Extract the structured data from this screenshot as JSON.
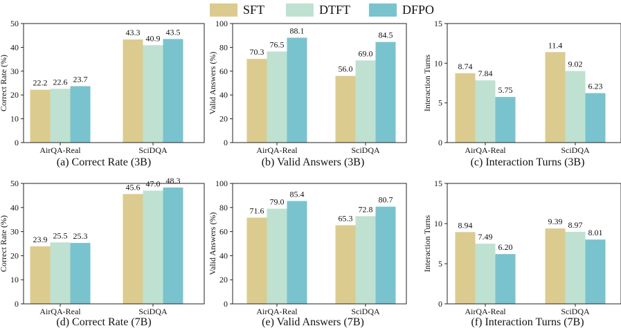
{
  "legend": [
    {
      "name": "SFT",
      "color": "#dccb8f"
    },
    {
      "name": "DTFT",
      "color": "#bfe1d2"
    },
    {
      "name": "DFPO",
      "color": "#79c3ce"
    }
  ],
  "chart_data": [
    {
      "type": "bar",
      "title": "(a) Correct Rate (3B)",
      "ylabel": "Correct Rate (%)",
      "categories": [
        "AirQA-Real",
        "SciDQA"
      ],
      "ylim": [
        0,
        50
      ],
      "yticks": [
        0,
        10,
        20,
        30,
        40,
        50
      ],
      "series": [
        {
          "name": "SFT",
          "values": [
            22.2,
            43.3
          ]
        },
        {
          "name": "DTFT",
          "values": [
            22.6,
            40.9
          ]
        },
        {
          "name": "DFPO",
          "values": [
            23.7,
            43.5
          ]
        }
      ],
      "labels": [
        [
          "22.2",
          "43.3"
        ],
        [
          "22.6",
          "40.9"
        ],
        [
          "23.7",
          "43.5"
        ]
      ]
    },
    {
      "type": "bar",
      "title": "(b) Valid Answers (3B)",
      "ylabel": "Valid Answers (%)",
      "categories": [
        "AirQA-Real",
        "SciDQA"
      ],
      "ylim": [
        0,
        100
      ],
      "yticks": [
        0,
        20,
        40,
        60,
        80,
        100
      ],
      "series": [
        {
          "name": "SFT",
          "values": [
            70.3,
            56.0
          ]
        },
        {
          "name": "DTFT",
          "values": [
            76.5,
            69.0
          ]
        },
        {
          "name": "DFPO",
          "values": [
            88.1,
            84.5
          ]
        }
      ],
      "labels": [
        [
          "70.3",
          "56.0"
        ],
        [
          "76.5",
          "69.0"
        ],
        [
          "88.1",
          "84.5"
        ]
      ]
    },
    {
      "type": "bar",
      "title": "(c) Interaction Turns (3B)",
      "ylabel": "Interaction Turns",
      "categories": [
        "AirQA-Real",
        "SciDQA"
      ],
      "ylim": [
        0,
        15
      ],
      "yticks": [
        0,
        5,
        10,
        15
      ],
      "series": [
        {
          "name": "SFT",
          "values": [
            8.74,
            11.4
          ]
        },
        {
          "name": "DTFT",
          "values": [
            7.84,
            9.02
          ]
        },
        {
          "name": "DFPO",
          "values": [
            5.75,
            6.23
          ]
        }
      ],
      "labels": [
        [
          "8.74",
          "11.4"
        ],
        [
          "7.84",
          "9.02"
        ],
        [
          "5.75",
          "6.23"
        ]
      ]
    },
    {
      "type": "bar",
      "title": "(d) Correct Rate (7B)",
      "ylabel": "Correct Rate (%)",
      "categories": [
        "AirQA-Real",
        "SciDQA"
      ],
      "ylim": [
        0,
        50
      ],
      "yticks": [
        0,
        10,
        20,
        30,
        40,
        50
      ],
      "series": [
        {
          "name": "SFT",
          "values": [
            23.9,
            45.6
          ]
        },
        {
          "name": "DTFT",
          "values": [
            25.5,
            47.0
          ]
        },
        {
          "name": "DFPO",
          "values": [
            25.3,
            48.3
          ]
        }
      ],
      "labels": [
        [
          "23.9",
          "45.6"
        ],
        [
          "25.5",
          "47.0"
        ],
        [
          "25.3",
          "48.3"
        ]
      ]
    },
    {
      "type": "bar",
      "title": "(e) Valid Answers (7B)",
      "ylabel": "Valid Answers (%)",
      "categories": [
        "AirQA-Real",
        "SciDQA"
      ],
      "ylim": [
        0,
        100
      ],
      "yticks": [
        0,
        20,
        40,
        60,
        80,
        100
      ],
      "series": [
        {
          "name": "SFT",
          "values": [
            71.6,
            65.3
          ]
        },
        {
          "name": "DTFT",
          "values": [
            79.0,
            72.8
          ]
        },
        {
          "name": "DFPO",
          "values": [
            85.4,
            80.7
          ]
        }
      ],
      "labels": [
        [
          "71.6",
          "65.3"
        ],
        [
          "79.0",
          "72.8"
        ],
        [
          "85.4",
          "80.7"
        ]
      ]
    },
    {
      "type": "bar",
      "title": "(f) Interaction Turns (7B)",
      "ylabel": "Interaction Turns",
      "categories": [
        "AirQA-Real",
        "SciDQA"
      ],
      "ylim": [
        0,
        15
      ],
      "yticks": [
        0,
        5,
        10,
        15
      ],
      "series": [
        {
          "name": "SFT",
          "values": [
            8.94,
            9.39
          ]
        },
        {
          "name": "DTFT",
          "values": [
            7.49,
            8.97
          ]
        },
        {
          "name": "DFPO",
          "values": [
            6.2,
            8.01
          ]
        }
      ],
      "labels": [
        [
          "8.94",
          "9.39"
        ],
        [
          "7.49",
          "8.97"
        ],
        [
          "6.20",
          "8.01"
        ]
      ]
    }
  ]
}
